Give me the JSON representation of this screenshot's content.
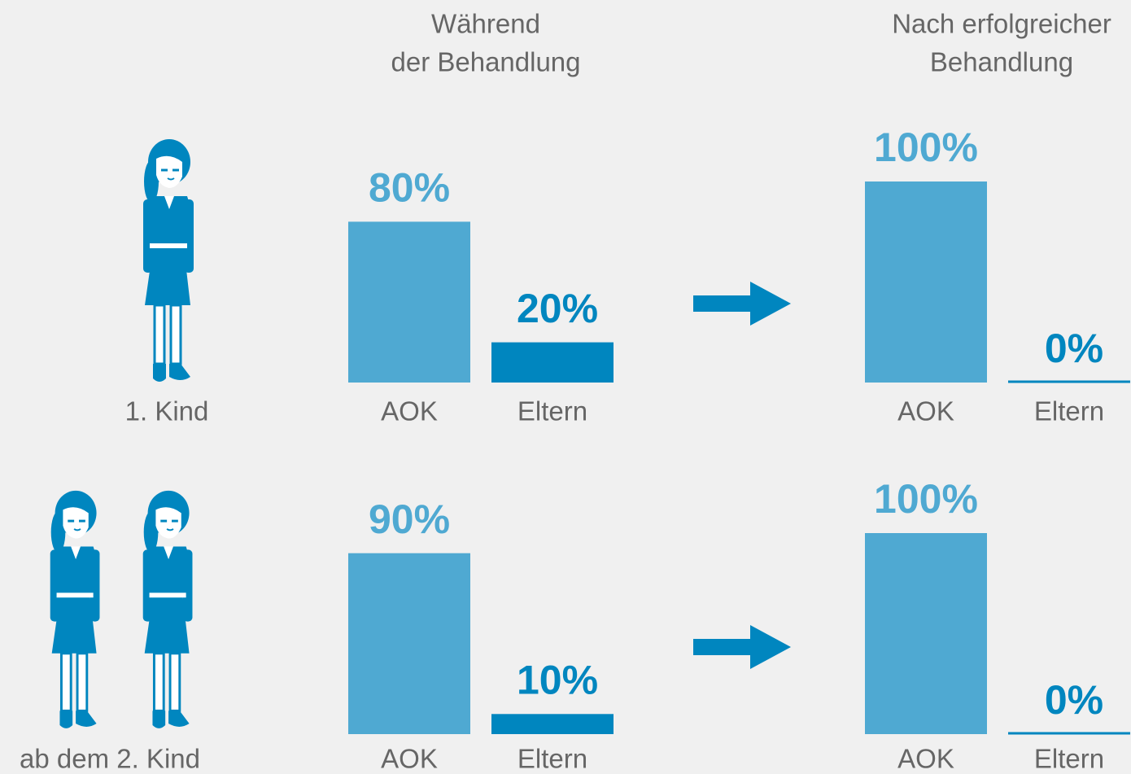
{
  "columns": [
    [
      "Während",
      "der Behandlung"
    ],
    [
      "Nach erfolgreicher",
      "Behandlung"
    ]
  ],
  "rows": [
    "1. Kind",
    "ab dem 2. Kind"
  ],
  "chart_data": [
    {
      "type": "bar",
      "categories": [
        "AOK",
        "Eltern"
      ],
      "values": [
        80,
        20
      ],
      "value_labels": [
        "80%",
        "20%"
      ],
      "colors": [
        "#4fa9d2",
        "#0086bf"
      ]
    },
    {
      "type": "bar",
      "categories": [
        "AOK",
        "Eltern"
      ],
      "values": [
        100,
        0
      ],
      "value_labels": [
        "100%",
        "0%"
      ],
      "colors": [
        "#4fa9d2",
        "#0086bf"
      ]
    },
    {
      "type": "bar",
      "categories": [
        "AOK",
        "Eltern"
      ],
      "values": [
        90,
        10
      ],
      "value_labels": [
        "90%",
        "10%"
      ],
      "colors": [
        "#4fa9d2",
        "#0086bf"
      ]
    },
    {
      "type": "bar",
      "categories": [
        "AOK",
        "Eltern"
      ],
      "values": [
        100,
        0
      ],
      "value_labels": [
        "100%",
        "0%"
      ],
      "colors": [
        "#4fa9d2",
        "#0086bf"
      ]
    }
  ]
}
